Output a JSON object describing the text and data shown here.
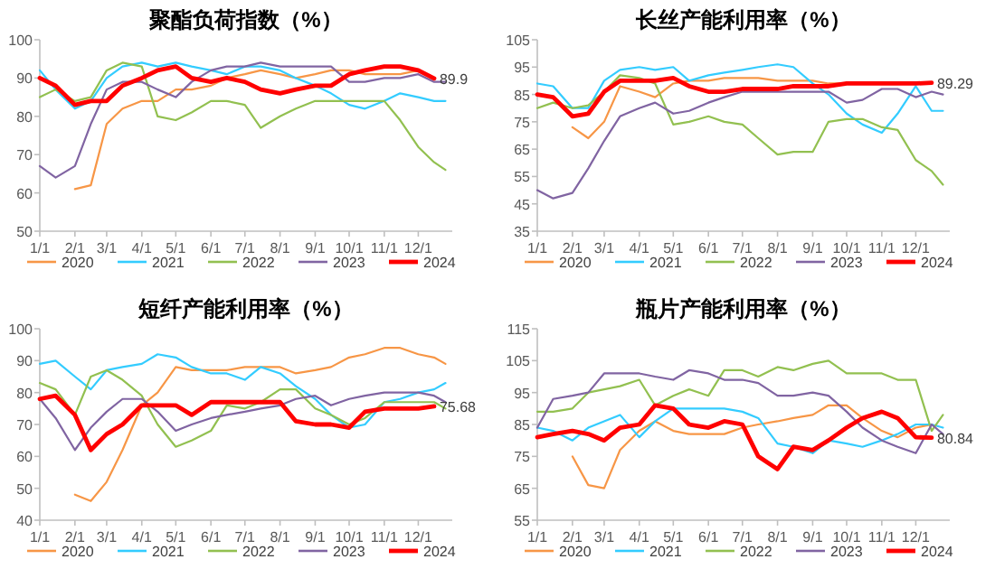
{
  "chart_data": [
    {
      "type": "line",
      "title": "聚酯负荷指数（%）",
      "x": [
        "--01-01",
        "--01-15",
        "--02-01",
        "--02-15",
        "--03-01",
        "--03-15",
        "--04-01",
        "--04-15",
        "--05-01",
        "--05-15",
        "--06-01",
        "--06-15",
        "--07-01",
        "--07-15",
        "--08-01",
        "--08-15",
        "--09-01",
        "--09-15",
        "--10-01",
        "--10-15",
        "--11-01",
        "--11-15",
        "--12-01",
        "--12-15",
        "--12-25"
      ],
      "xlim": [
        "--01-01",
        "--12-31"
      ],
      "xticks": [
        {
          "value": "--01-01",
          "label": "1/1"
        },
        {
          "value": "--02-01",
          "label": "2/1"
        },
        {
          "value": "--03-01",
          "label": "3/1"
        },
        {
          "value": "--04-01",
          "label": "4/1"
        },
        {
          "value": "--05-01",
          "label": "5/1"
        },
        {
          "value": "--06-01",
          "label": "6/1"
        },
        {
          "value": "--07-01",
          "label": "7/1"
        },
        {
          "value": "--08-01",
          "label": "8/1"
        },
        {
          "value": "--09-01",
          "label": "9/1"
        },
        {
          "value": "--10-01",
          "label": "10/1"
        },
        {
          "value": "--11-01",
          "label": "11/1"
        },
        {
          "value": "--12-01",
          "label": "12/1"
        }
      ],
      "ylim": [
        50,
        100
      ],
      "yticks": [
        50,
        60,
        70,
        80,
        90,
        100
      ],
      "grid": false,
      "legend": "bottom",
      "marker": "none",
      "line_style": "solid",
      "series": [
        {
          "name": "2020",
          "color": "#f79646",
          "values": [
            null,
            null,
            61,
            62,
            78,
            82,
            84,
            84,
            87,
            87,
            88,
            90,
            91,
            92,
            91,
            90,
            91,
            92,
            92,
            91,
            91,
            91,
            92,
            90,
            null
          ]
        },
        {
          "name": "2021",
          "color": "#33ccff",
          "values": [
            92,
            87,
            82,
            84,
            90,
            93,
            94,
            93,
            94,
            93,
            92,
            91,
            93,
            93,
            92,
            90,
            88,
            86,
            83,
            82,
            84,
            86,
            85,
            84,
            84
          ]
        },
        {
          "name": "2022",
          "color": "#92c050",
          "values": [
            85,
            87,
            84,
            85,
            92,
            94,
            93,
            80,
            79,
            81,
            84,
            84,
            83,
            77,
            80,
            82,
            84,
            84,
            84,
            84,
            84,
            79,
            72,
            68,
            66
          ]
        },
        {
          "name": "2023",
          "color": "#8064a2",
          "values": [
            67,
            64,
            67,
            78,
            87,
            89,
            89,
            87,
            85,
            89,
            92,
            93,
            93,
            94,
            93,
            93,
            93,
            93,
            89,
            89,
            90,
            90,
            91,
            89,
            89
          ]
        },
        {
          "name": "2024",
          "color": "#ff0000",
          "values": [
            90,
            88,
            83,
            84,
            84,
            88,
            90,
            92,
            93,
            90,
            89,
            90,
            89,
            87,
            86,
            87,
            88,
            88,
            91,
            92,
            93,
            93,
            92,
            89.9,
            null
          ]
        }
      ],
      "annotations": [
        {
          "text": "89.9",
          "x": "--12-15",
          "y": 89.9
        }
      ]
    },
    {
      "type": "line",
      "title": "长丝产能利用率（%）",
      "x": [
        "--01-01",
        "--01-15",
        "--02-01",
        "--02-15",
        "--03-01",
        "--03-15",
        "--04-01",
        "--04-15",
        "--05-01",
        "--05-15",
        "--06-01",
        "--06-15",
        "--07-01",
        "--07-15",
        "--08-01",
        "--08-15",
        "--09-01",
        "--09-15",
        "--10-01",
        "--10-15",
        "--11-01",
        "--11-15",
        "--12-01",
        "--12-15",
        "--12-25"
      ],
      "xlim": [
        "--01-01",
        "--12-31"
      ],
      "xticks": [
        {
          "value": "--01-01",
          "label": "1/1"
        },
        {
          "value": "--02-01",
          "label": "2/1"
        },
        {
          "value": "--03-01",
          "label": "3/1"
        },
        {
          "value": "--04-01",
          "label": "4/1"
        },
        {
          "value": "--05-01",
          "label": "5/1"
        },
        {
          "value": "--06-01",
          "label": "6/1"
        },
        {
          "value": "--07-01",
          "label": "7/1"
        },
        {
          "value": "--08-01",
          "label": "8/1"
        },
        {
          "value": "--09-01",
          "label": "9/1"
        },
        {
          "value": "--10-01",
          "label": "10/1"
        },
        {
          "value": "--11-01",
          "label": "11/1"
        },
        {
          "value": "--12-01",
          "label": "12/1"
        }
      ],
      "ylim": [
        35,
        105
      ],
      "yticks": [
        35,
        45,
        55,
        65,
        75,
        85,
        95,
        105
      ],
      "grid": false,
      "legend": "bottom",
      "marker": "none",
      "line_style": "solid",
      "series": [
        {
          "name": "2020",
          "color": "#f79646",
          "values": [
            null,
            null,
            73,
            69,
            75,
            88,
            86,
            84,
            89,
            90,
            90,
            91,
            91,
            91,
            90,
            90,
            90,
            89,
            89,
            89,
            89,
            89,
            89,
            89,
            null
          ]
        },
        {
          "name": "2021",
          "color": "#33ccff",
          "values": [
            89,
            88,
            80,
            80,
            90,
            94,
            95,
            94,
            95,
            90,
            92,
            93,
            94,
            95,
            96,
            95,
            89,
            85,
            78,
            74,
            71,
            78,
            88,
            79,
            79
          ]
        },
        {
          "name": "2022",
          "color": "#92c050",
          "values": [
            80,
            82,
            80,
            81,
            86,
            92,
            91,
            89,
            74,
            75,
            77,
            75,
            74,
            69,
            63,
            64,
            64,
            75,
            76,
            76,
            73,
            72,
            61,
            57,
            52
          ]
        },
        {
          "name": "2023",
          "color": "#8064a2",
          "values": [
            50,
            47,
            49,
            58,
            68,
            77,
            80,
            82,
            78,
            79,
            82,
            84,
            86,
            86,
            86,
            86,
            86,
            86,
            82,
            83,
            87,
            87,
            84,
            86,
            85
          ]
        },
        {
          "name": "2024",
          "color": "#ff0000",
          "values": [
            85,
            84,
            77,
            78,
            86,
            90,
            90,
            90,
            91,
            88,
            86,
            86,
            87,
            87,
            87,
            88,
            88,
            88,
            89,
            89,
            89,
            89,
            89,
            89.29,
            null
          ]
        }
      ],
      "annotations": [
        {
          "text": "89.29",
          "x": "--12-15",
          "y": 89.29
        }
      ]
    },
    {
      "type": "line",
      "title": "短纤产能利用率（%）",
      "x": [
        "--01-01",
        "--01-15",
        "--02-01",
        "--02-15",
        "--03-01",
        "--03-15",
        "--04-01",
        "--04-15",
        "--05-01",
        "--05-15",
        "--06-01",
        "--06-15",
        "--07-01",
        "--07-15",
        "--08-01",
        "--08-15",
        "--09-01",
        "--09-15",
        "--10-01",
        "--10-15",
        "--11-01",
        "--11-15",
        "--12-01",
        "--12-15",
        "--12-25"
      ],
      "xlim": [
        "--01-01",
        "--12-31"
      ],
      "xticks": [
        {
          "value": "--01-01",
          "label": "1/1"
        },
        {
          "value": "--02-01",
          "label": "2/1"
        },
        {
          "value": "--03-01",
          "label": "3/1"
        },
        {
          "value": "--04-01",
          "label": "4/1"
        },
        {
          "value": "--05-01",
          "label": "5/1"
        },
        {
          "value": "--06-01",
          "label": "6/1"
        },
        {
          "value": "--07-01",
          "label": "7/1"
        },
        {
          "value": "--08-01",
          "label": "8/1"
        },
        {
          "value": "--09-01",
          "label": "9/1"
        },
        {
          "value": "--10-01",
          "label": "10/1"
        },
        {
          "value": "--11-01",
          "label": "11/1"
        },
        {
          "value": "--12-01",
          "label": "12/1"
        }
      ],
      "ylim": [
        40,
        100
      ],
      "yticks": [
        40,
        50,
        60,
        70,
        80,
        90,
        100
      ],
      "grid": false,
      "legend": "bottom",
      "marker": "none",
      "line_style": "solid",
      "series": [
        {
          "name": "2020",
          "color": "#f79646",
          "values": [
            null,
            null,
            48,
            46,
            52,
            62,
            76,
            80,
            88,
            87,
            87,
            87,
            88,
            88,
            88,
            86,
            87,
            88,
            91,
            92,
            94,
            94,
            92,
            91,
            89
          ]
        },
        {
          "name": "2021",
          "color": "#33ccff",
          "values": [
            89,
            90,
            85,
            81,
            87,
            88,
            89,
            92,
            91,
            88,
            86,
            86,
            84,
            88,
            86,
            82,
            78,
            73,
            69,
            70,
            77,
            78,
            80,
            81,
            83
          ]
        },
        {
          "name": "2022",
          "color": "#92c050",
          "values": [
            83,
            81,
            73,
            85,
            87,
            84,
            79,
            70,
            63,
            65,
            68,
            76,
            75,
            77,
            81,
            81,
            75,
            73,
            70,
            72,
            77,
            77,
            77,
            77,
            75
          ]
        },
        {
          "name": "2023",
          "color": "#8064a2",
          "values": [
            78,
            72,
            62,
            69,
            74,
            78,
            78,
            74,
            68,
            70,
            72,
            73,
            74,
            75,
            76,
            78,
            79,
            76,
            78,
            79,
            80,
            80,
            80,
            79,
            77
          ]
        },
        {
          "name": "2024",
          "color": "#ff0000",
          "values": [
            78,
            79,
            73,
            62,
            67,
            70,
            76,
            76,
            76,
            73,
            77,
            77,
            77,
            77,
            77,
            71,
            70,
            70,
            69,
            74,
            75,
            75,
            75,
            75.68,
            null
          ]
        }
      ],
      "annotations": [
        {
          "text": "75.68",
          "x": "--12-15",
          "y": 75.68
        }
      ]
    },
    {
      "type": "line",
      "title": "瓶片产能利用率（%）",
      "x": [
        "--01-01",
        "--01-15",
        "--02-01",
        "--02-15",
        "--03-01",
        "--03-15",
        "--04-01",
        "--04-15",
        "--05-01",
        "--05-15",
        "--06-01",
        "--06-15",
        "--07-01",
        "--07-15",
        "--08-01",
        "--08-15",
        "--09-01",
        "--09-15",
        "--10-01",
        "--10-15",
        "--11-01",
        "--11-15",
        "--12-01",
        "--12-15",
        "--12-25"
      ],
      "xlim": [
        "--01-01",
        "--12-31"
      ],
      "xticks": [
        {
          "value": "--01-01",
          "label": "1/1"
        },
        {
          "value": "--02-01",
          "label": "2/1"
        },
        {
          "value": "--03-01",
          "label": "3/1"
        },
        {
          "value": "--04-01",
          "label": "4/1"
        },
        {
          "value": "--05-01",
          "label": "5/1"
        },
        {
          "value": "--06-01",
          "label": "6/1"
        },
        {
          "value": "--07-01",
          "label": "7/1"
        },
        {
          "value": "--08-01",
          "label": "8/1"
        },
        {
          "value": "--09-01",
          "label": "9/1"
        },
        {
          "value": "--10-01",
          "label": "10/1"
        },
        {
          "value": "--11-01",
          "label": "11/1"
        },
        {
          "value": "--12-01",
          "label": "12/1"
        }
      ],
      "ylim": [
        55,
        115
      ],
      "yticks": [
        55,
        65,
        75,
        85,
        95,
        105,
        115
      ],
      "grid": false,
      "legend": "bottom",
      "marker": "none",
      "line_style": "solid",
      "series": [
        {
          "name": "2020",
          "color": "#f79646",
          "values": [
            null,
            null,
            75,
            66,
            65,
            77,
            83,
            86,
            83,
            82,
            82,
            82,
            84,
            85,
            86,
            87,
            88,
            91,
            91,
            87,
            83,
            81,
            84,
            85,
            null
          ]
        },
        {
          "name": "2021",
          "color": "#33ccff",
          "values": [
            84,
            83,
            80,
            84,
            86,
            88,
            81,
            86,
            90,
            90,
            90,
            90,
            89,
            87,
            79,
            78,
            76,
            80,
            79,
            78,
            80,
            82,
            85,
            85,
            84
          ]
        },
        {
          "name": "2022",
          "color": "#92c050",
          "values": [
            89,
            89,
            90,
            95,
            96,
            97,
            99,
            91,
            94,
            96,
            94,
            102,
            102,
            100,
            103,
            102,
            104,
            105,
            101,
            101,
            101,
            99,
            99,
            83,
            88
          ]
        },
        {
          "name": "2023",
          "color": "#8064a2",
          "values": [
            84,
            93,
            94,
            95,
            101,
            101,
            101,
            100,
            99,
            102,
            101,
            99,
            99,
            98,
            94,
            94,
            95,
            94,
            89,
            84,
            80,
            78,
            76,
            85,
            82
          ]
        },
        {
          "name": "2024",
          "color": "#ff0000",
          "values": [
            81,
            82,
            83,
            82,
            80,
            84,
            85,
            91,
            90,
            85,
            84,
            86,
            85,
            75,
            71,
            78,
            77,
            80,
            84,
            87,
            89,
            87,
            81,
            80.84,
            null
          ]
        }
      ],
      "annotations": [
        {
          "text": "80.84",
          "x": "--12-15",
          "y": 80.84
        }
      ]
    }
  ]
}
